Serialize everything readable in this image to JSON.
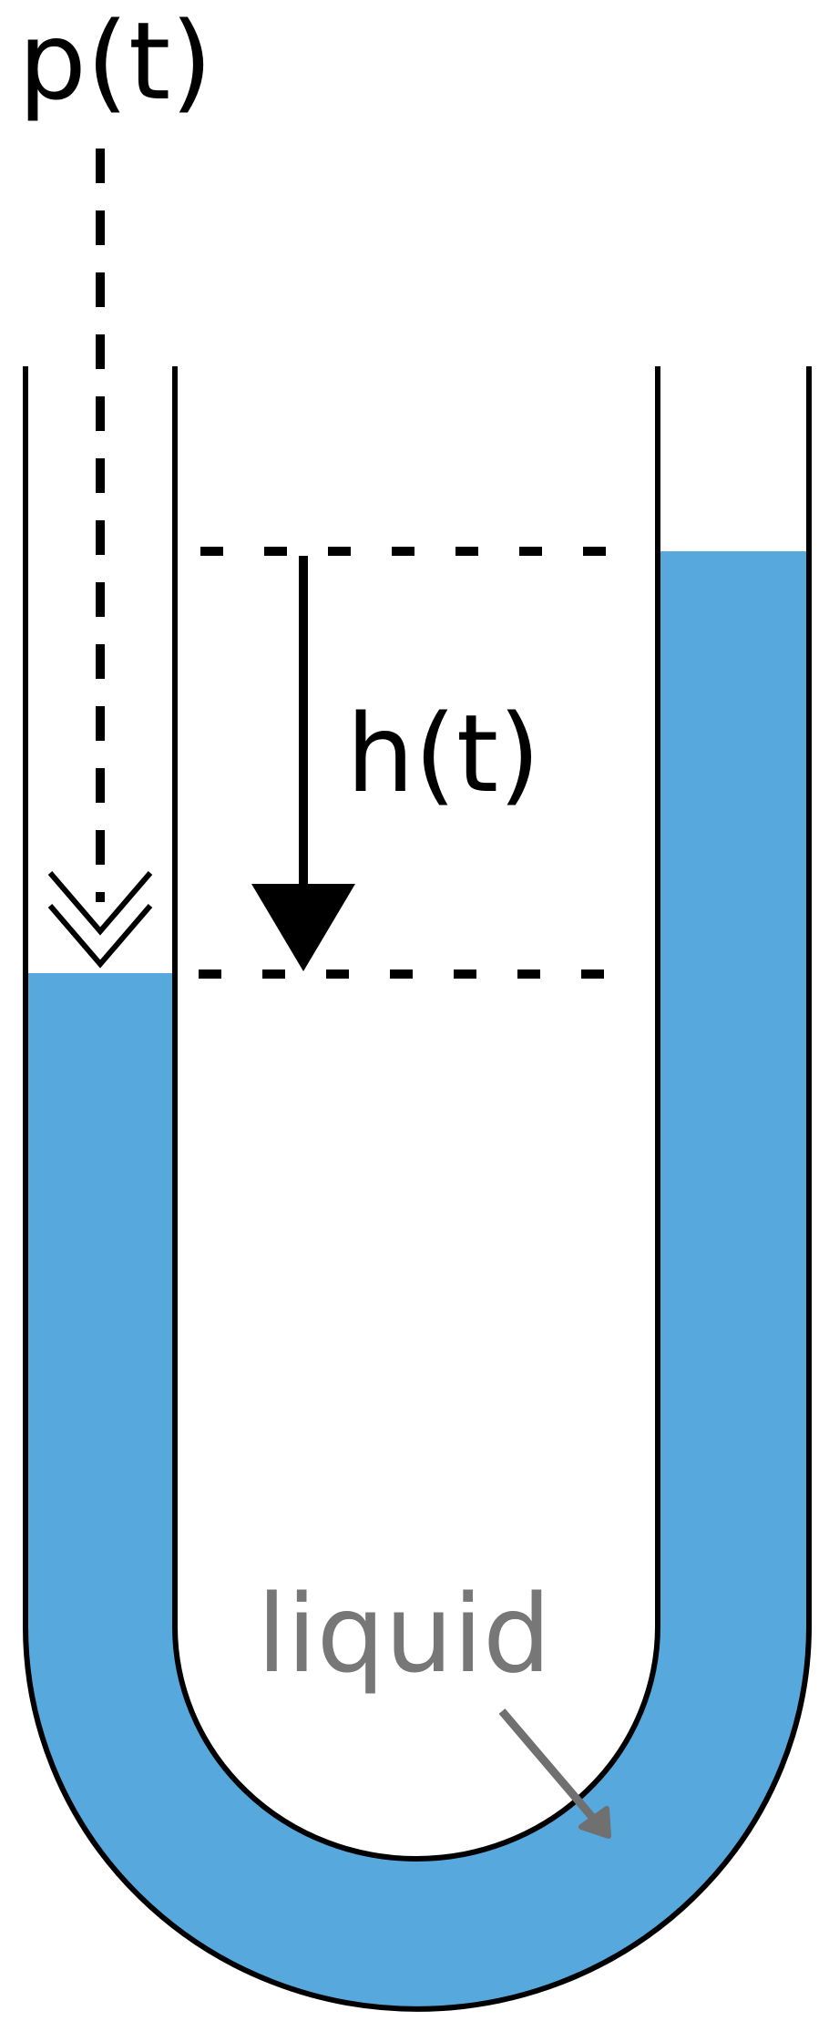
{
  "labels": {
    "pressure": "p(t)",
    "height": "h(t)",
    "liquid": "liquid"
  },
  "colors": {
    "liquid": "#57a8dd",
    "outline": "#000000",
    "liquid_label": "#777777",
    "background": "#ffffff"
  }
}
